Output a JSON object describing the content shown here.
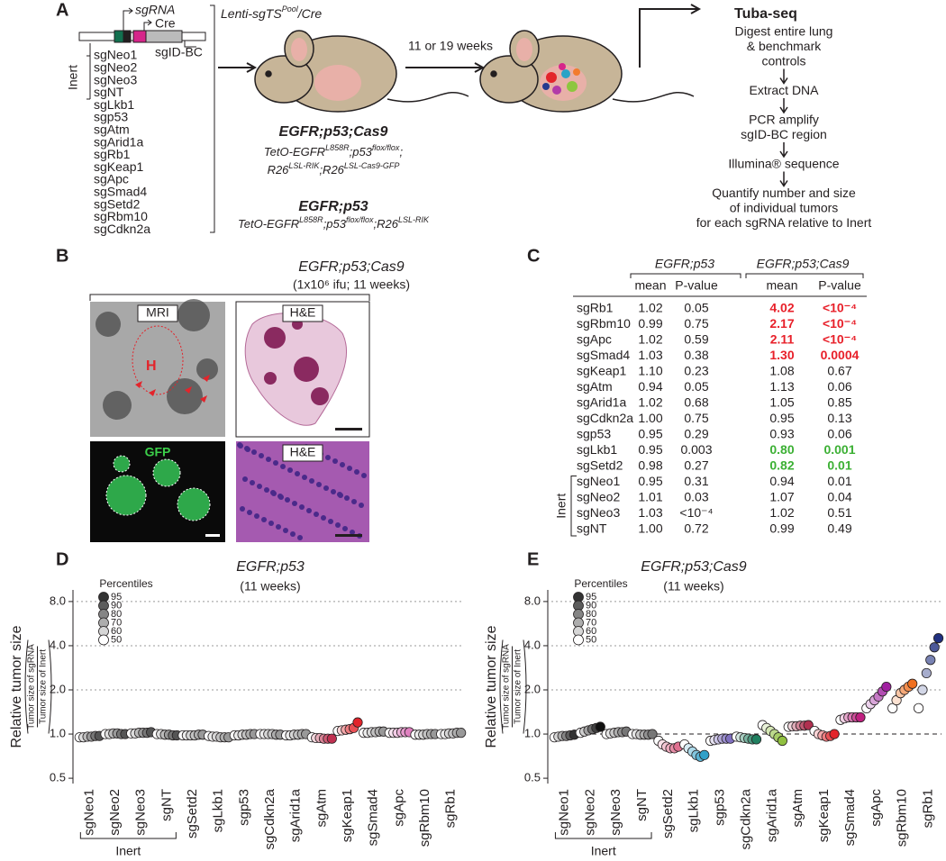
{
  "panel_labels": [
    "A",
    "B",
    "C",
    "D",
    "E"
  ],
  "panel_a": {
    "vector": {
      "sgrna": "sgRNA",
      "cre": "Cre",
      "barcode": "sgID-BC"
    },
    "inert_label": "Inert",
    "sgrnas": [
      {
        "name": "sgNeo1",
        "color": "#231f20"
      },
      {
        "name": "sgNeo2",
        "color": "#231f20"
      },
      {
        "name": "sgNeo3",
        "color": "#231f20"
      },
      {
        "name": "sgNT",
        "color": "#231f20"
      },
      {
        "name": "sgLkb1",
        "color": "#2aa3c6"
      },
      {
        "name": "sgp53",
        "color": "#8366b3"
      },
      {
        "name": "sgAtm",
        "color": "#8e1f3f"
      },
      {
        "name": "sgArid1a",
        "color": "#8dc63f"
      },
      {
        "name": "sgRb1",
        "color": "#263a8f"
      },
      {
        "name": "sgKeap1",
        "color": "#e3242b"
      },
      {
        "name": "sgApc",
        "color": "#b23aa8"
      },
      {
        "name": "sgSmad4",
        "color": "#d6258a"
      },
      {
        "name": "sgSetd2",
        "color": "#d4416f"
      },
      {
        "name": "sgRbm10",
        "color": "#f27b2d"
      },
      {
        "name": "sgCdkn2a",
        "color": "#12704f"
      }
    ],
    "virus": [
      "Lenti-sgTS",
      "Pool",
      "/Cre"
    ],
    "timing": "11 or 19 weeks",
    "models": [
      {
        "name": "EGFR;p53;Cas9",
        "lines": [
          [
            "TetO-EGFR",
            "L858R",
            ";p53",
            "flox/flox",
            ";"
          ],
          [
            "R26",
            "LSL-RIK",
            ";R26",
            "LSL-Cas9-GFP"
          ]
        ]
      },
      {
        "name": "EGFR;p53",
        "lines": [
          [
            "TetO-EGFR",
            "L858R",
            ";p53",
            "flox/flox",
            ";R26",
            "LSL-RIK"
          ]
        ]
      }
    ],
    "tuba_seq": {
      "title": "Tuba-seq",
      "steps": [
        [
          "Digest entire lung",
          "& benchmark",
          "controls"
        ],
        [
          "Extract DNA"
        ],
        [
          "PCR amplify",
          "sgID-BC region"
        ],
        [
          "Illumina® sequence"
        ],
        [
          "Quantify number and size",
          "of individual tumors",
          "for each sgRNA relative to Inert"
        ]
      ]
    }
  },
  "panel_b": {
    "title": "EGFR;p53;Cas9",
    "subtitle": "(1x10⁶ ifu; 11 weeks)",
    "images": [
      "MRI",
      "H&E",
      "GFP",
      "H&E"
    ],
    "annotation": "H"
  },
  "panel_c": {
    "groups": [
      "EGFR;p53",
      "EGFR;p53;Cas9"
    ],
    "columns": [
      "mean",
      "P-value",
      "mean",
      "P-value"
    ],
    "inert_label": "Inert",
    "rows": [
      {
        "cells": [
          "sgRb1",
          "1.02",
          "0.05",
          "4.02",
          "<10⁻⁴"
        ],
        "color": "#e8202a"
      },
      {
        "cells": [
          "sgRbm10",
          "0.99",
          "0.75",
          "2.17",
          "<10⁻⁴"
        ],
        "color": "#e8202a"
      },
      {
        "cells": [
          "sgApc",
          "1.02",
          "0.59",
          "2.11",
          "<10⁻⁴"
        ],
        "color": "#e8202a"
      },
      {
        "cells": [
          "sgSmad4",
          "1.03",
          "0.38",
          "1.30",
          "0.0004"
        ],
        "color": "#e8202a"
      },
      {
        "cells": [
          "sgKeap1",
          "1.10",
          "0.23",
          "1.08",
          "0.67"
        ]
      },
      {
        "cells": [
          "sgAtm",
          "0.94",
          "0.05",
          "1.13",
          "0.06"
        ]
      },
      {
        "cells": [
          "sgArid1a",
          "1.02",
          "0.68",
          "1.05",
          "0.85"
        ]
      },
      {
        "cells": [
          "sgCdkn2a",
          "1.00",
          "0.75",
          "0.95",
          "0.13"
        ]
      },
      {
        "cells": [
          "sgp53",
          "0.95",
          "0.29",
          "0.93",
          "0.06"
        ]
      },
      {
        "cells": [
          "sgLkb1",
          "0.95",
          "0.003",
          "0.80",
          "0.001"
        ],
        "color": "#3cb034"
      },
      {
        "cells": [
          "sgSetd2",
          "0.98",
          "0.27",
          "0.82",
          "0.01"
        ],
        "color": "#3cb034"
      },
      {
        "cells": [
          "sgNeo1",
          "0.95",
          "0.31",
          "0.94",
          "0.01"
        ]
      },
      {
        "cells": [
          "sgNeo2",
          "1.01",
          "0.03",
          "1.07",
          "0.04"
        ]
      },
      {
        "cells": [
          "sgNeo3",
          "1.03",
          "<10⁻⁴",
          "1.02",
          "0.51"
        ]
      },
      {
        "cells": [
          "sgNT",
          "1.00",
          "0.72",
          "0.99",
          "0.49"
        ]
      }
    ]
  },
  "chart_data": [
    {
      "type": "dot",
      "title": "EGFR;p53",
      "subtitle": "(11 weeks)",
      "y_label": "Relative tumor size",
      "y_label_fraction": [
        "Tumor size of sgRNA",
        "Tumor size of Inert"
      ],
      "log_scale": true,
      "ylim": [
        0.46,
        9.6
      ],
      "yticks": [
        {
          "value": 0.5,
          "label": "0.5"
        },
        {
          "value": 1,
          "label": "1.0"
        },
        {
          "value": 2,
          "label": "2.0"
        },
        {
          "value": 4,
          "label": "4.0"
        },
        {
          "value": 8,
          "label": "8.0"
        }
      ],
      "gridlines": [
        2,
        4,
        8
      ],
      "legend_title": "Percentiles",
      "legend_color": "#333333",
      "percentiles": [
        50,
        60,
        70,
        80,
        90,
        95
      ],
      "group_label": "Inert",
      "categories": [
        "sgNeo1",
        "sgNeo2",
        "sgNeo3",
        "sgNT",
        "sgSetd2",
        "sgLkb1",
        "sgp53",
        "sgCdkn2a",
        "sgArid1a",
        "sgAtm",
        "sgKeap1",
        "sgSmad4",
        "sgApc",
        "sgRbm10",
        "sgRb1"
      ],
      "colors": [
        "#555555",
        "#555555",
        "#555555",
        "#555555",
        "#999999",
        "#999999",
        "#999999",
        "#999999",
        "#999999",
        "#c03050",
        "#e3242b",
        "#999999",
        "#e080c0",
        "#999999",
        "#999999"
      ],
      "values": [
        [
          0.95,
          0.95,
          0.96,
          0.96,
          0.97,
          0.97
        ],
        [
          1.0,
          1.0,
          1.01,
          1.01,
          1.0,
          1.0
        ],
        [
          1.01,
          1.01,
          1.02,
          1.02,
          1.02,
          1.03
        ],
        [
          1.0,
          1.0,
          0.99,
          0.99,
          0.98,
          0.98
        ],
        [
          0.98,
          0.98,
          0.98,
          0.98,
          0.99,
          0.99
        ],
        [
          0.97,
          0.96,
          0.96,
          0.95,
          0.95,
          0.95
        ],
        [
          0.98,
          0.98,
          0.99,
          0.99,
          1.0,
          1.0
        ],
        [
          1.0,
          1.0,
          1.0,
          1.0,
          0.99,
          0.99
        ],
        [
          0.98,
          0.98,
          0.99,
          0.99,
          1.0,
          1.0
        ],
        [
          0.95,
          0.94,
          0.94,
          0.93,
          0.93,
          0.93
        ],
        [
          1.05,
          1.06,
          1.07,
          1.08,
          1.1,
          1.2
        ],
        [
          1.02,
          1.02,
          1.03,
          1.03,
          1.04,
          1.04
        ],
        [
          1.02,
          1.02,
          1.02,
          1.03,
          1.03,
          1.03
        ],
        [
          0.99,
          0.99,
          0.99,
          1.0,
          1.0,
          1.0
        ],
        [
          1.0,
          1.0,
          1.01,
          1.01,
          1.02,
          1.02
        ]
      ]
    },
    {
      "type": "dot",
      "title": "EGFR;p53;Cas9",
      "subtitle": "(11 weeks)",
      "y_label": "Relative tumor size",
      "y_label_fraction": [
        "Tumor size of sgRNA",
        "Tumor size of Inert"
      ],
      "log_scale": true,
      "ylim": [
        0.46,
        9.6
      ],
      "yticks": [
        {
          "value": 0.5,
          "label": "0.5"
        },
        {
          "value": 1,
          "label": "1.0"
        },
        {
          "value": 2,
          "label": "2.0"
        },
        {
          "value": 4,
          "label": "4.0"
        },
        {
          "value": 8,
          "label": "8.0"
        }
      ],
      "gridlines": [
        2,
        4,
        8
      ],
      "reference_line": 1,
      "legend_title": "Percentiles",
      "legend_color": "#333333",
      "percentiles": [
        50,
        60,
        70,
        80,
        90,
        95
      ],
      "group_label": "Inert",
      "categories": [
        "sgNeo1",
        "sgNeo2",
        "sgNeo3",
        "sgNT",
        "sgSetd2",
        "sgLkb1",
        "sgp53",
        "sgCdkn2a",
        "sgArid1a",
        "sgAtm",
        "sgKeap1",
        "sgSmad4",
        "sgApc",
        "sgRbm10",
        "sgRb1"
      ],
      "colors": [
        "#333333",
        "#111111",
        "#777777",
        "#777777",
        "#e07090",
        "#30a0c8",
        "#8070c0",
        "#208060",
        "#90c040",
        "#b03050",
        "#e3242b",
        "#c02080",
        "#a020a0",
        "#f07020",
        "#203080"
      ],
      "values": [
        [
          0.95,
          0.96,
          0.97,
          0.97,
          0.98,
          0.99
        ],
        [
          1.02,
          1.04,
          1.06,
          1.08,
          1.1,
          1.12
        ],
        [
          1.0,
          1.01,
          1.02,
          1.03,
          1.03,
          1.04
        ],
        [
          1.0,
          1.0,
          0.99,
          0.99,
          0.99,
          1.0
        ],
        [
          0.9,
          0.85,
          0.82,
          0.8,
          0.8,
          0.82
        ],
        [
          0.85,
          0.8,
          0.76,
          0.72,
          0.7,
          0.72
        ],
        [
          0.9,
          0.91,
          0.92,
          0.93,
          0.93,
          0.93
        ],
        [
          0.96,
          0.95,
          0.94,
          0.93,
          0.92,
          0.92
        ],
        [
          1.15,
          1.1,
          1.05,
          1.0,
          0.95,
          0.9
        ],
        [
          1.12,
          1.13,
          1.13,
          1.14,
          1.14,
          1.15
        ],
        [
          1.05,
          1.0,
          0.98,
          0.96,
          0.97,
          1.0
        ],
        [
          1.25,
          1.28,
          1.3,
          1.3,
          1.3,
          1.3
        ],
        [
          1.5,
          1.6,
          1.7,
          1.8,
          1.95,
          2.1
        ],
        [
          1.5,
          1.7,
          1.9,
          2.0,
          2.1,
          2.2
        ],
        [
          1.5,
          2.0,
          2.6,
          3.2,
          3.9,
          4.5
        ]
      ]
    }
  ]
}
